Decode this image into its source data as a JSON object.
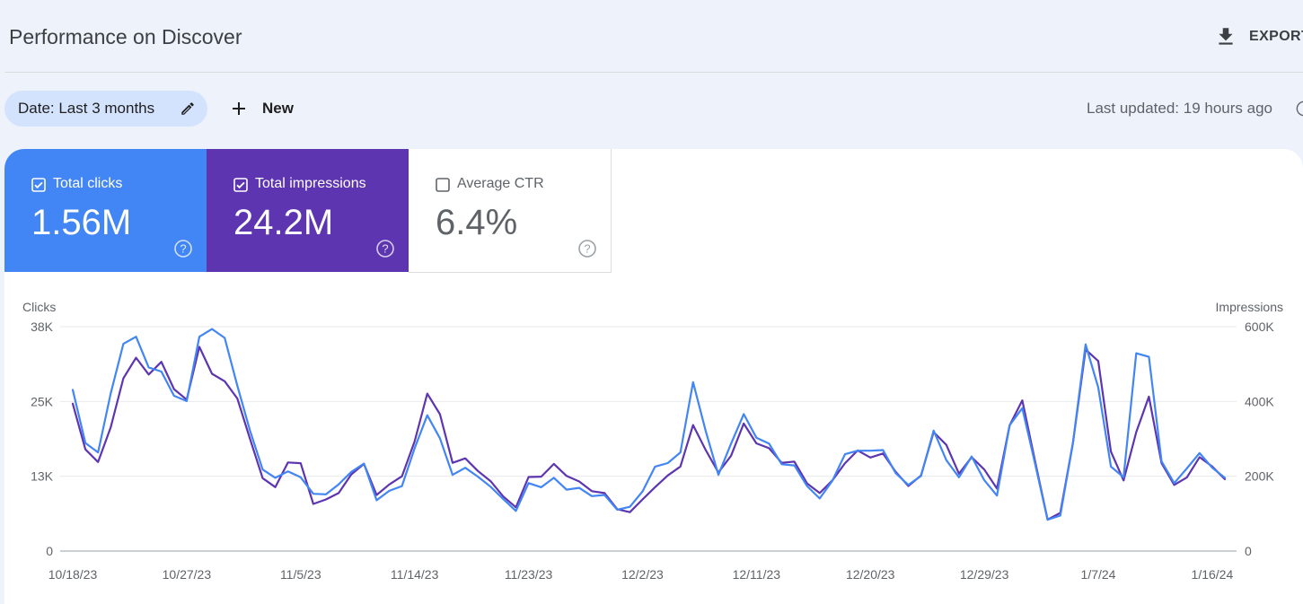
{
  "header": {
    "title": "Performance on Discover",
    "export_label": "EXPORT"
  },
  "filters": {
    "date_chip": "Date: Last 3 months",
    "new_label": "New",
    "last_updated": "Last updated: 19 hours ago"
  },
  "metrics": {
    "clicks": {
      "label": "Total clicks",
      "value": "1.56M",
      "checked": true,
      "color": "#4285f4"
    },
    "impressions": {
      "label": "Total impressions",
      "value": "24.2M",
      "checked": true,
      "color": "#5e35b1"
    },
    "ctr": {
      "label": "Average CTR",
      "value": "6.4%",
      "checked": false
    }
  },
  "chart_data": {
    "type": "line",
    "ylabel_left": "Clicks",
    "ylabel_right": "Impressions",
    "y_left_ticks": [
      "0",
      "13K",
      "25K",
      "38K"
    ],
    "y_right_ticks": [
      "0",
      "200K",
      "400K",
      "600K"
    ],
    "ylim_left": [
      0,
      38000
    ],
    "ylim_right": [
      0,
      600000
    ],
    "grid": true,
    "x_start": "10/18/23",
    "x_tick_labels": [
      "10/18/23",
      "10/27/23",
      "11/5/23",
      "11/14/23",
      "11/23/23",
      "12/2/23",
      "12/11/23",
      "12/20/23",
      "12/29/23",
      "1/7/24",
      "1/16/24"
    ],
    "series": [
      {
        "name": "Clicks",
        "axis": "left",
        "color": "#4285f4",
        "values": [
          27300,
          18300,
          16700,
          26700,
          35100,
          36300,
          31100,
          30400,
          26300,
          25400,
          36300,
          37600,
          36100,
          28000,
          20400,
          13800,
          12400,
          13500,
          12500,
          9700,
          9600,
          11300,
          13400,
          14800,
          8600,
          10200,
          11000,
          17400,
          23000,
          19100,
          12900,
          14100,
          12600,
          10900,
          8800,
          6800,
          11500,
          10800,
          12400,
          10400,
          10700,
          9300,
          9500,
          7000,
          7500,
          10100,
          14300,
          14900,
          16700,
          28600,
          20300,
          12900,
          18200,
          23200,
          19200,
          18200,
          14700,
          14500,
          11000,
          8900,
          11900,
          16400,
          17000,
          17000,
          17100,
          13200,
          11200,
          12700,
          20400,
          15400,
          12500,
          16000,
          12000,
          9400,
          21300,
          24200,
          14900,
          5300,
          6000,
          18300,
          35000,
          27700,
          14300,
          12500,
          33500,
          32900,
          15200,
          11500,
          14000,
          16600,
          14100,
          12400
        ]
      },
      {
        "name": "Impressions",
        "axis": "right",
        "color": "#5e35b1",
        "values": [
          394000,
          272000,
          238000,
          331000,
          462000,
          517000,
          472000,
          506000,
          433000,
          405000,
          546000,
          474000,
          454000,
          408000,
          300000,
          195000,
          171000,
          237000,
          235000,
          126000,
          138000,
          155000,
          205000,
          233000,
          150000,
          178000,
          200000,
          293000,
          421000,
          366000,
          236000,
          248000,
          214000,
          187000,
          146000,
          117000,
          198000,
          199000,
          233000,
          201000,
          186000,
          160000,
          155000,
          112000,
          104000,
          138000,
          171000,
          202000,
          226000,
          337000,
          270000,
          210000,
          255000,
          341000,
          288000,
          275000,
          236000,
          239000,
          181000,
          155000,
          189000,
          235000,
          269000,
          250000,
          261000,
          212000,
          174000,
          202000,
          318000,
          284000,
          207000,
          251000,
          218000,
          167000,
          336000,
          403000,
          242000,
          84000,
          102000,
          289000,
          539000,
          508000,
          266000,
          189000,
          318000,
          413000,
          235000,
          177000,
          197000,
          251000,
          226000,
          192000
        ]
      }
    ]
  }
}
